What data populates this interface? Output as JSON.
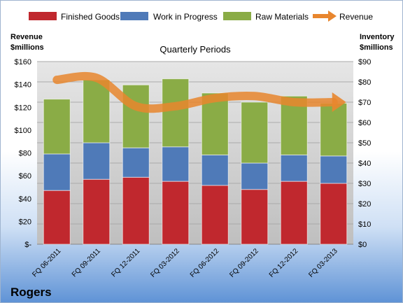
{
  "company": "Rogers",
  "chart_data": {
    "type": "bar",
    "title": "Quarterly Periods",
    "ylabel_left": [
      "Revenue",
      "$millions"
    ],
    "ylabel_right": [
      "Inventory",
      "$millions"
    ],
    "categories": [
      "FQ 06-2011",
      "FQ 09-2011",
      "FQ 12-2011",
      "FQ 03-2012",
      "FQ 06-2012",
      "FQ 09-2012",
      "FQ 12-2012",
      "FQ 03-2013"
    ],
    "left_ticks": [
      "$-",
      "$20",
      "$40",
      "$60",
      "$80",
      "$100",
      "$120",
      "$140",
      "$160"
    ],
    "right_ticks": [
      "$0",
      "$10",
      "$20",
      "$30",
      "$40",
      "$50",
      "$60",
      "$70",
      "$80",
      "$90"
    ],
    "ylim_left": [
      0,
      160
    ],
    "ylim_right": [
      0,
      90
    ],
    "grid": true,
    "legend_position": "top",
    "stacked_series": [
      {
        "name": "Finished Goods",
        "color": "#c0282e",
        "values": [
          26.5,
          32,
          33,
          31,
          29,
          27,
          31,
          30
        ]
      },
      {
        "name": "Work in Progress",
        "color": "#4f7ab8",
        "values": [
          18,
          18,
          14.5,
          17,
          15,
          13,
          13,
          13.5
        ]
      },
      {
        "name": "Raw Materials",
        "color": "#8aac46",
        "values": [
          27,
          31,
          31,
          33.5,
          30.5,
          30,
          29,
          26
        ]
      }
    ],
    "line_series": {
      "name": "Revenue",
      "color": "#e8862e",
      "values": [
        81,
        82,
        68,
        68,
        72,
        73,
        70,
        70
      ]
    }
  }
}
